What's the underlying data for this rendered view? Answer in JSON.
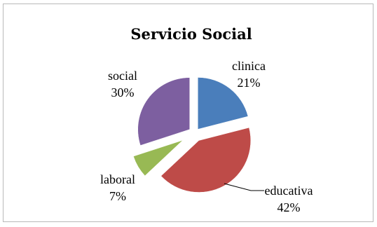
{
  "chart_data": {
    "type": "pie",
    "title": "Servicio Social",
    "slices": [
      {
        "category": "clinica",
        "value": 21,
        "value_label": "21%",
        "color": "#4a7ebb"
      },
      {
        "category": "educativa",
        "value": 42,
        "value_label": "42%",
        "color": "#be4b48"
      },
      {
        "category": "laboral",
        "value": 7,
        "value_label": "7%",
        "color": "#98b954"
      },
      {
        "category": "social",
        "value": 30,
        "value_label": "30%",
        "color": "#7d5fa0"
      }
    ],
    "exploded": true,
    "start_angle": "12 o'clock, clockwise",
    "legend": "none"
  }
}
